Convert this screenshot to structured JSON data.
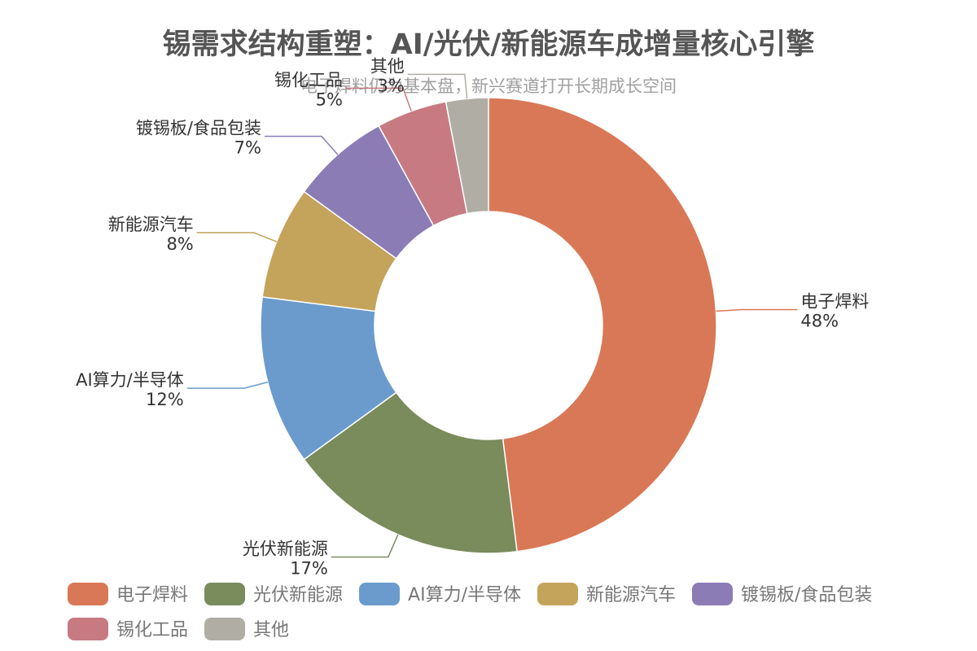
{
  "chart_data": {
    "type": "pie",
    "donut": true,
    "title": "锡需求结构重塑：AI/光伏/新能源车成增量核心引擎",
    "subtitle": "电子焊料仍为基本盘，新兴赛道打开长期成长空间",
    "value_unit": "%",
    "legend_position": "bottom",
    "slices": [
      {
        "name": "电子焊料",
        "value": 48,
        "color": "#d97856"
      },
      {
        "name": "光伏新能源",
        "value": 17,
        "color": "#7a8b5c"
      },
      {
        "name": "AI算力/半导体",
        "value": 12,
        "color": "#6a9bcc"
      },
      {
        "name": "新能源汽车",
        "value": 8,
        "color": "#c4a35a"
      },
      {
        "name": "镀锡板/食品包装",
        "value": 7,
        "color": "#8b7cb6"
      },
      {
        "name": "锡化工品",
        "value": 5,
        "color": "#c77a82"
      },
      {
        "name": "其他",
        "value": 3,
        "color": "#b0ada4"
      }
    ]
  }
}
